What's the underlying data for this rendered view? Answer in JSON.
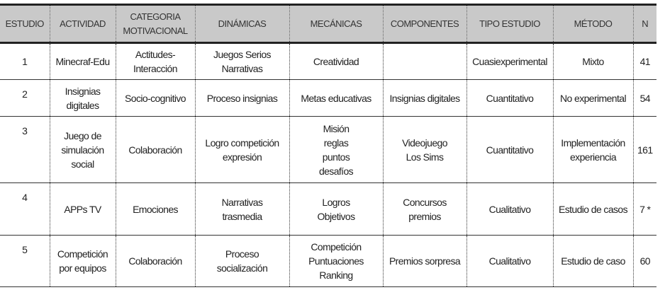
{
  "headers": [
    "ESTUDIO",
    "ACTIVIDAD",
    "CATEGORIA MOTIVACIONAL",
    "DINÁMICAS",
    "MECÁNICAS",
    "COMPONENTES",
    "TIPO ESTUDIO",
    "MÉTODO",
    "N"
  ],
  "header_lines": {
    "categoria_1": "CATEGORIA",
    "categoria_2": "MOTIVACIONAL"
  },
  "rows": [
    {
      "estudio": "1",
      "actividad": [
        "Minecraf-Edu"
      ],
      "categoria": [
        "Actitudes-",
        "Interacción"
      ],
      "dinamicas": [
        "Juegos Serios",
        "Narrativas"
      ],
      "mecanicas": [
        "Creatividad"
      ],
      "componentes": [],
      "tipo": "Cuasiexperimental",
      "metodo": [
        "Mixto"
      ],
      "n": "41"
    },
    {
      "estudio": "2",
      "actividad": [
        "Insignias",
        "digitales"
      ],
      "categoria": [
        "Socio-cognitivo"
      ],
      "dinamicas": [
        "Proceso insignias"
      ],
      "mecanicas": [
        "Metas educativas"
      ],
      "componentes": [
        "Insignias digitales"
      ],
      "tipo": "Cuantitativo",
      "metodo": [
        "No experimental"
      ],
      "n": "54"
    },
    {
      "estudio": "3",
      "actividad": [
        "Juego de",
        "simulación",
        "social"
      ],
      "categoria": [
        "Colaboración"
      ],
      "dinamicas": [
        "Logro competición",
        "expresión"
      ],
      "mecanicas": [
        "Misión",
        "reglas",
        "puntos",
        "desafíos"
      ],
      "componentes": [
        "Videojuego",
        "Los Sims"
      ],
      "tipo": "Cuantitativo",
      "metodo": [
        "Implementación",
        "experiencia"
      ],
      "n": "161"
    },
    {
      "estudio": "4",
      "actividad": [
        "APPs TV"
      ],
      "categoria": [
        "Emociones"
      ],
      "dinamicas": [
        "Narrativas",
        "trasmedia"
      ],
      "mecanicas": [
        "Logros",
        "Objetivos"
      ],
      "componentes": [
        "Concursos",
        "premios"
      ],
      "tipo": "Cualitativo",
      "metodo": [
        "Estudio de casos"
      ],
      "n": "7 *"
    },
    {
      "estudio": "5",
      "actividad": [
        "Competición",
        "por equipos"
      ],
      "categoria": [
        "Colaboración"
      ],
      "dinamicas": [
        "Proceso",
        "socialización"
      ],
      "mecanicas": [
        "Competición",
        "Puntuaciones",
        "Ranking"
      ],
      "componentes": [
        "Premios sorpresa"
      ],
      "tipo": "Cualitativo",
      "metodo": [
        "Estudio de caso"
      ],
      "n": "60"
    }
  ]
}
